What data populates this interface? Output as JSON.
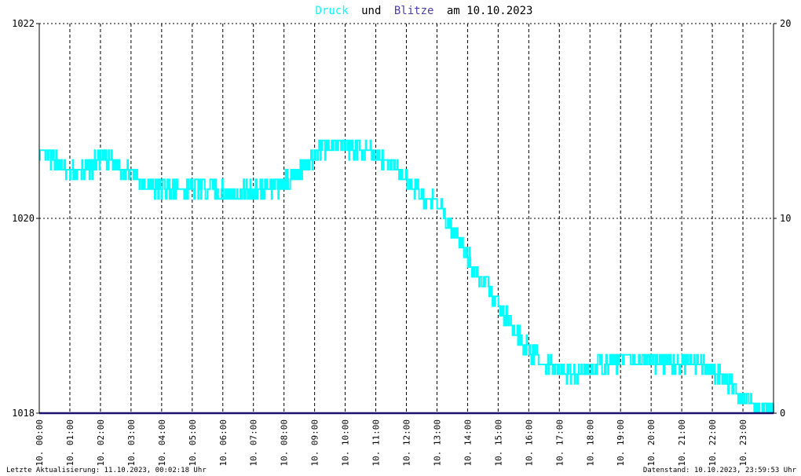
{
  "chart_data": {
    "type": "line",
    "title": {
      "part1": "Druck",
      "part2": "und",
      "part3": "Blitze",
      "part4": "am 10.10.2023"
    },
    "colors": {
      "druck": "#00ffff",
      "blitze": "#4b3fa8",
      "blitze_line": "#1b1070",
      "title_dark": "#000000",
      "background": "#ffffff",
      "grid": "#000000"
    },
    "y_left": {
      "min": 1018,
      "max": 1022,
      "ticks": [
        "1018",
        "1020",
        "1022"
      ]
    },
    "y_right": {
      "min": 0,
      "max": 20,
      "ticks": [
        "0",
        "10",
        "20"
      ]
    },
    "x_range": [
      0,
      24
    ],
    "x_ticks": [
      "10. 00:00",
      "10. 01:00",
      "10. 02:00",
      "10. 03:00",
      "10. 04:00",
      "10. 05:00",
      "10. 06:00",
      "10. 07:00",
      "10. 08:00",
      "10. 09:00",
      "10. 10:00",
      "10. 11:00",
      "10. 12:00",
      "10. 13:00",
      "10. 14:00",
      "10. 15:00",
      "10. 16:00",
      "10. 17:00",
      "10. 18:00",
      "10. 19:00",
      "10. 20:00",
      "10. 21:00",
      "10. 22:00",
      "10. 23:00"
    ],
    "series": [
      {
        "name": "Druck",
        "axis": "left",
        "x": [
          0,
          0.5,
          1,
          1.5,
          2,
          2.5,
          3,
          3.5,
          4,
          4.5,
          5,
          5.5,
          6,
          6.5,
          7,
          7.5,
          8,
          8.5,
          9,
          9.5,
          10,
          10.5,
          11,
          11.5,
          12,
          12.5,
          13,
          13.5,
          14,
          14.5,
          15,
          15.5,
          16,
          16.5,
          17,
          17.5,
          18,
          18.5,
          19,
          19.5,
          20,
          20.5,
          21,
          21.5,
          22,
          22.5,
          23,
          23.5,
          24
        ],
        "values": [
          1020.65,
          1020.6,
          1020.45,
          1020.5,
          1020.6,
          1020.55,
          1020.45,
          1020.35,
          1020.3,
          1020.3,
          1020.3,
          1020.35,
          1020.25,
          1020.25,
          1020.3,
          1020.3,
          1020.35,
          1020.5,
          1020.65,
          1020.75,
          1020.75,
          1020.7,
          1020.65,
          1020.55,
          1020.4,
          1020.25,
          1020.15,
          1019.9,
          1019.6,
          1019.35,
          1019.1,
          1018.85,
          1018.65,
          1018.5,
          1018.45,
          1018.4,
          1018.45,
          1018.5,
          1018.55,
          1018.55,
          1018.55,
          1018.5,
          1018.5,
          1018.5,
          1018.45,
          1018.3,
          1018.15,
          1018.05,
          1018.05
        ]
      },
      {
        "name": "Blitze",
        "axis": "right",
        "x": [
          0,
          24
        ],
        "values": [
          0,
          0
        ]
      }
    ],
    "grid": true,
    "xlabel": "",
    "ylabel": ""
  },
  "footer": {
    "left": "Letzte Aktualisierung: 11.10.2023, 00:02:18 Uhr",
    "right": "Datenstand: 10.10.2023, 23:59:53 Uhr"
  }
}
